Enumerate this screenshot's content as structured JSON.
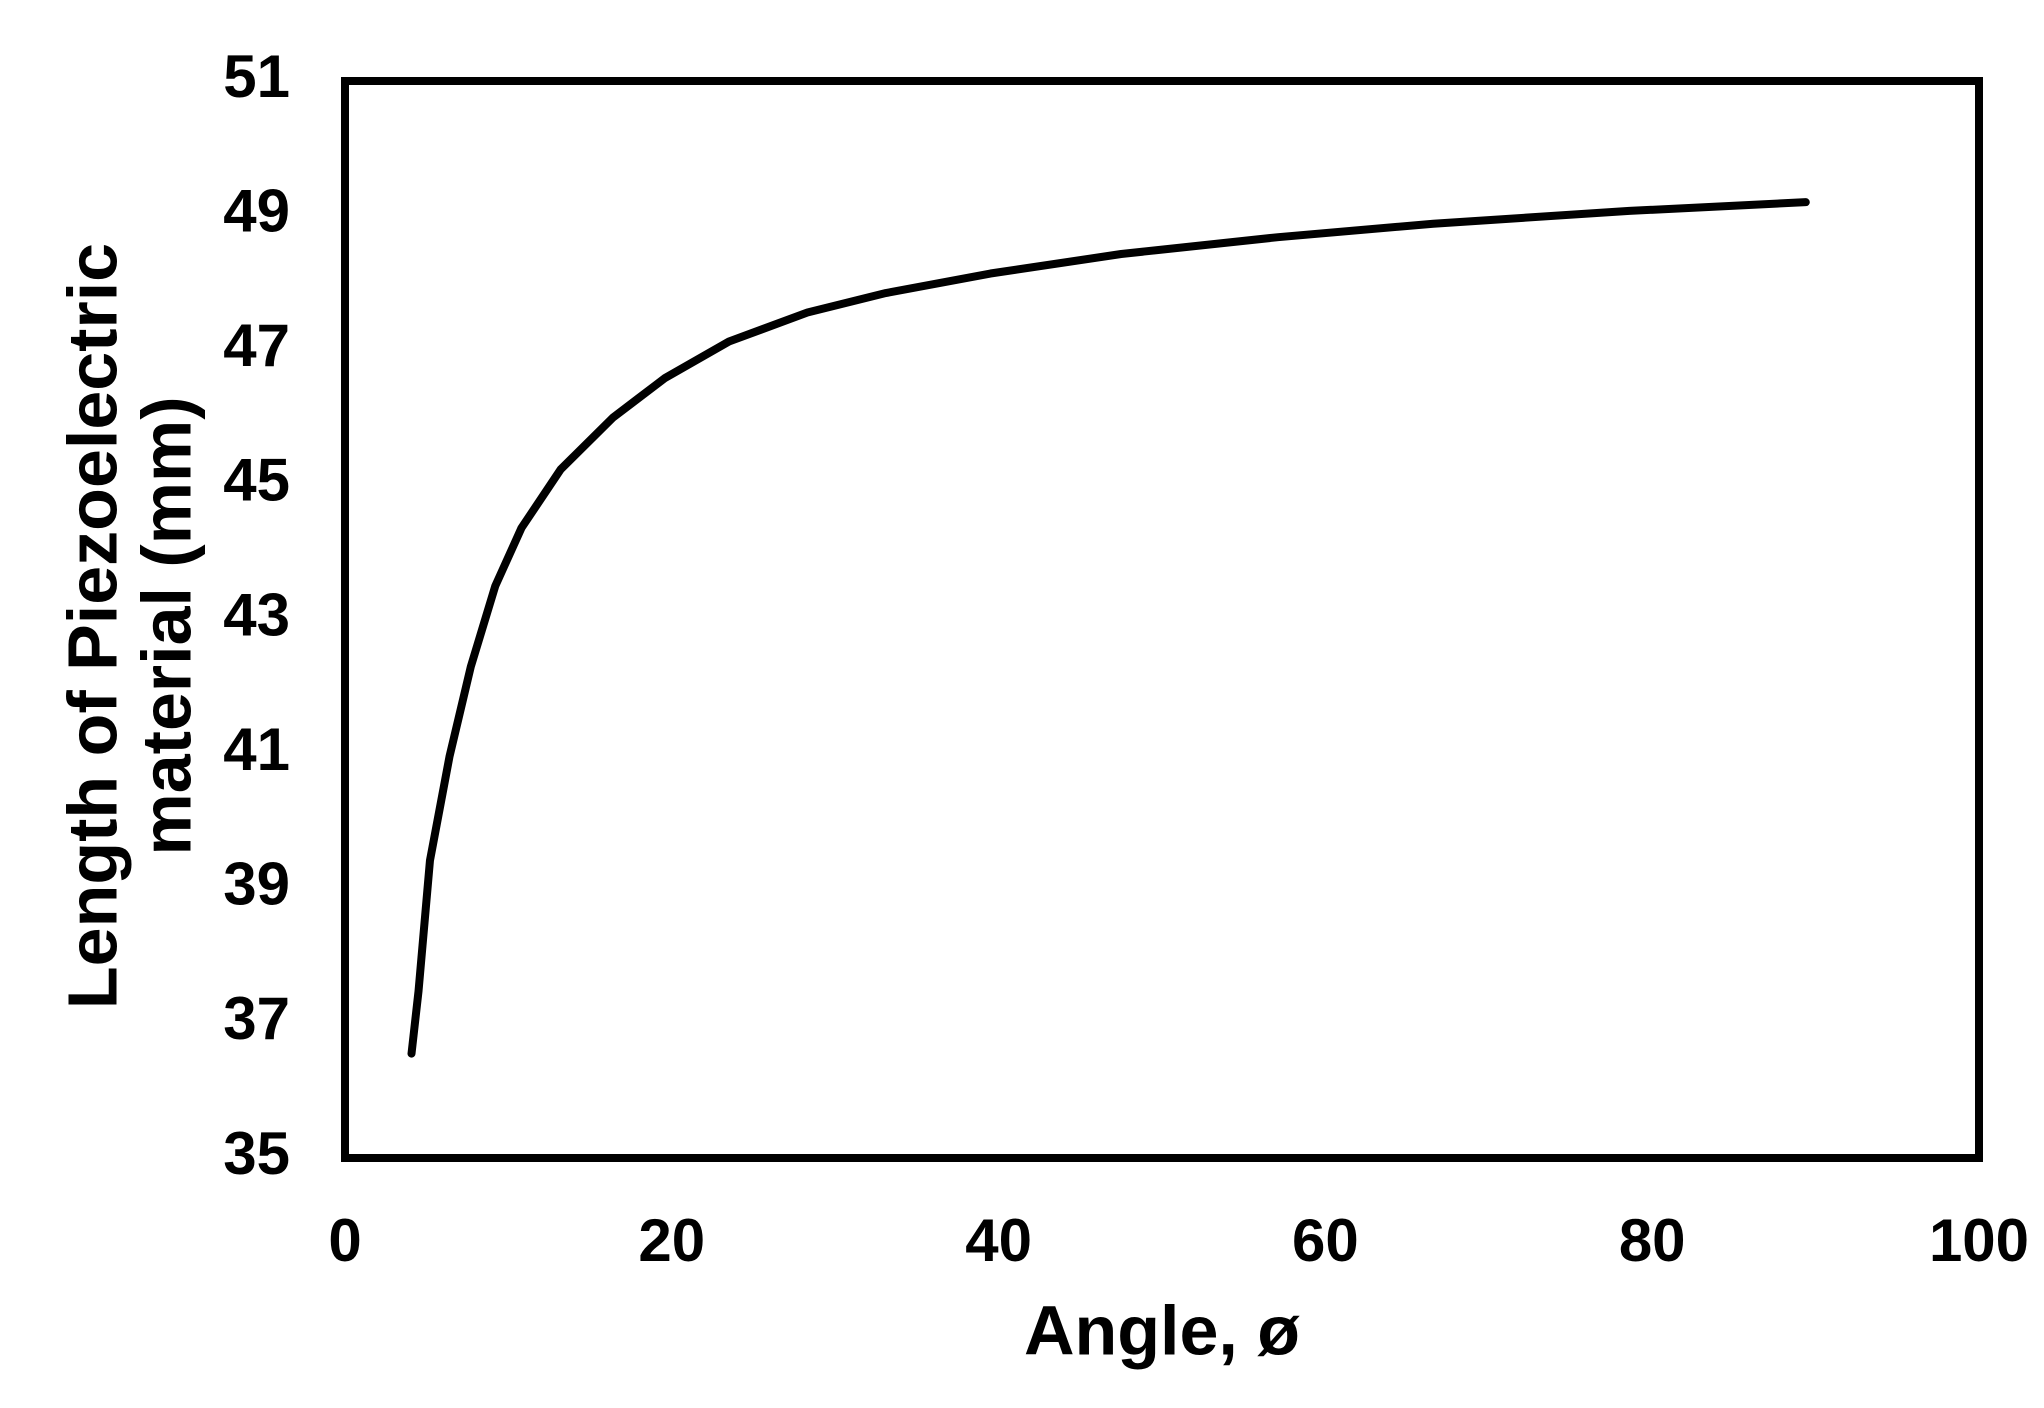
{
  "chart_data": {
    "type": "line",
    "xlabel": "Angle, ø",
    "ylabel": [
      "Length of Piezoelectric",
      "material (mm)"
    ],
    "x": [
      4.07,
      4.5,
      5.2,
      6.4,
      7.7,
      9.2,
      10.8,
      13.2,
      16.4,
      19.6,
      23.5,
      28.3,
      33.1,
      39.5,
      47.5,
      57.1,
      66.6,
      78.6,
      89.4
    ],
    "values": [
      36.55,
      37.48,
      39.42,
      40.97,
      42.3,
      43.5,
      44.36,
      45.23,
      46.0,
      46.59,
      47.13,
      47.56,
      47.85,
      48.14,
      48.43,
      48.68,
      48.88,
      49.07,
      49.2
    ],
    "color": "#000000",
    "xlim": [
      0,
      100
    ],
    "xticks": [
      0,
      20,
      40,
      60,
      80,
      100
    ],
    "ylim": [
      35,
      51
    ],
    "yticks": [
      35,
      37,
      39,
      41,
      43,
      45,
      47,
      49,
      51
    ],
    "grid": false
  }
}
